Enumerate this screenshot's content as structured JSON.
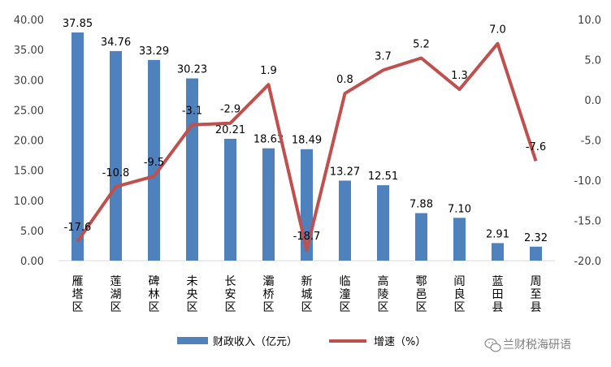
{
  "chart_data": {
    "type": "bar+line",
    "categories": [
      "雁塔区",
      "莲湖区",
      "碑林区",
      "未央区",
      "长安区",
      "灞桥区",
      "新城区",
      "临潼区",
      "高陵区",
      "鄠邑区",
      "阎良区",
      "蓝田县",
      "周至县"
    ],
    "series": [
      {
        "name": "财政收入（亿元）",
        "type": "bar",
        "axis": "left",
        "color": "#4f81bd",
        "values": [
          37.85,
          34.76,
          33.29,
          30.23,
          20.21,
          18.63,
          18.49,
          13.27,
          12.51,
          7.88,
          7.1,
          2.91,
          2.32
        ],
        "labels": [
          "37.85",
          "34.76",
          "33.29",
          "30.23",
          "20.21",
          "18.63",
          "18.49",
          "13.27",
          "12.51",
          "7.88",
          "7.10",
          "2.91",
          "2.32"
        ]
      },
      {
        "name": "增速（%）",
        "type": "line",
        "axis": "right",
        "color": "#c0504d",
        "values": [
          -17.6,
          -10.8,
          -9.5,
          -3.1,
          -2.9,
          1.9,
          -18.7,
          0.8,
          3.7,
          5.2,
          1.3,
          7.0,
          -7.6
        ],
        "labels": [
          "-17.6",
          "-10.8",
          "-9.5",
          "-3.1",
          "-2.9",
          "1.9",
          "-18.7",
          "0.8",
          "3.7",
          "5.2",
          "1.3",
          "7.0",
          "-7.6"
        ]
      }
    ],
    "y_left": {
      "ylim": [
        0,
        40
      ],
      "ticks": [
        "0.00",
        "5.00",
        "10.00",
        "15.00",
        "20.00",
        "25.00",
        "30.00",
        "35.00",
        "40.00"
      ]
    },
    "y_right": {
      "ylim": [
        -20,
        10
      ],
      "ticks": [
        "-20.0",
        "-15.0",
        "-10.0",
        "-5.0",
        "0.0",
        "5.0",
        "10.0"
      ]
    },
    "grid": false,
    "legend_position": "bottom"
  },
  "watermark": {
    "text": "兰财税海研语",
    "icon": "wechat-icon"
  }
}
